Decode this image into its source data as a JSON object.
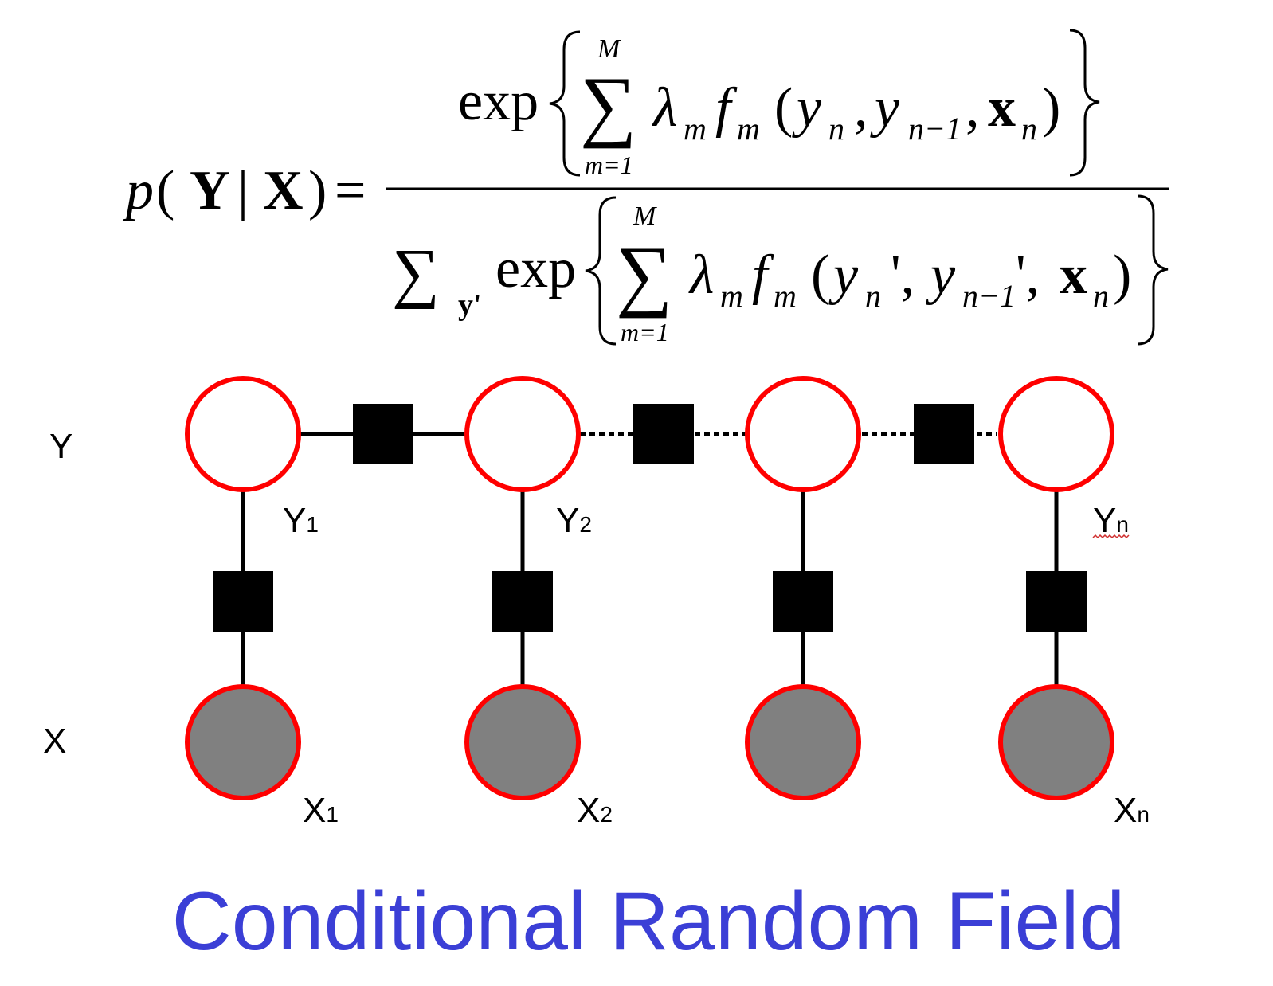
{
  "formula": {
    "lhs": {
      "p": "p",
      "open": "(",
      "Y": "Y",
      "bar": "|",
      "X": "X",
      "close": ")",
      "eq": "="
    },
    "numerator": {
      "exp": "exp",
      "sum_upper": "M",
      "sum_lower": "m=1",
      "lambda": "λ",
      "lambda_sub": "m",
      "f": "f",
      "f_sub": "m",
      "open": "(",
      "y1": "y",
      "y1_sub": "n",
      "comma1": ",",
      "y2": "y",
      "y2_sub": "n−1",
      "comma2": ",",
      "x": "x",
      "x_sub": "n",
      "close": ")"
    },
    "denominator": {
      "sum_sub": "y'",
      "exp": "exp",
      "sum_upper": "M",
      "sum_lower": "m=1",
      "lambda": "λ",
      "lambda_sub": "m",
      "f": "f",
      "f_sub": "m",
      "open": "(",
      "y1": "y",
      "y1_sub": "n",
      "prime1": "',",
      "y2": "y",
      "y2_sub": "n−1",
      "prime2": "',",
      "x": "x",
      "x_sub": "n",
      "close": ")"
    }
  },
  "diagram": {
    "row_labels": {
      "y": "Y",
      "x": "X"
    },
    "y_nodes": [
      {
        "label": "Y",
        "sub": "1"
      },
      {
        "label": "Y",
        "sub": "2"
      },
      {
        "label": "",
        "sub": ""
      },
      {
        "label": "Y",
        "sub": "n"
      }
    ],
    "x_nodes": [
      {
        "label": "X",
        "sub": "1"
      },
      {
        "label": "X",
        "sub": "2"
      },
      {
        "label": "",
        "sub": ""
      },
      {
        "label": "X",
        "sub": "n"
      }
    ],
    "colors": {
      "node_stroke": "#ff0000",
      "observed_fill": "#808080",
      "hidden_fill": "#ffffff",
      "factor": "#000000",
      "edge": "#000000"
    }
  },
  "caption": {
    "text": "Conditional Random Field",
    "color": "#3b3fd6"
  }
}
